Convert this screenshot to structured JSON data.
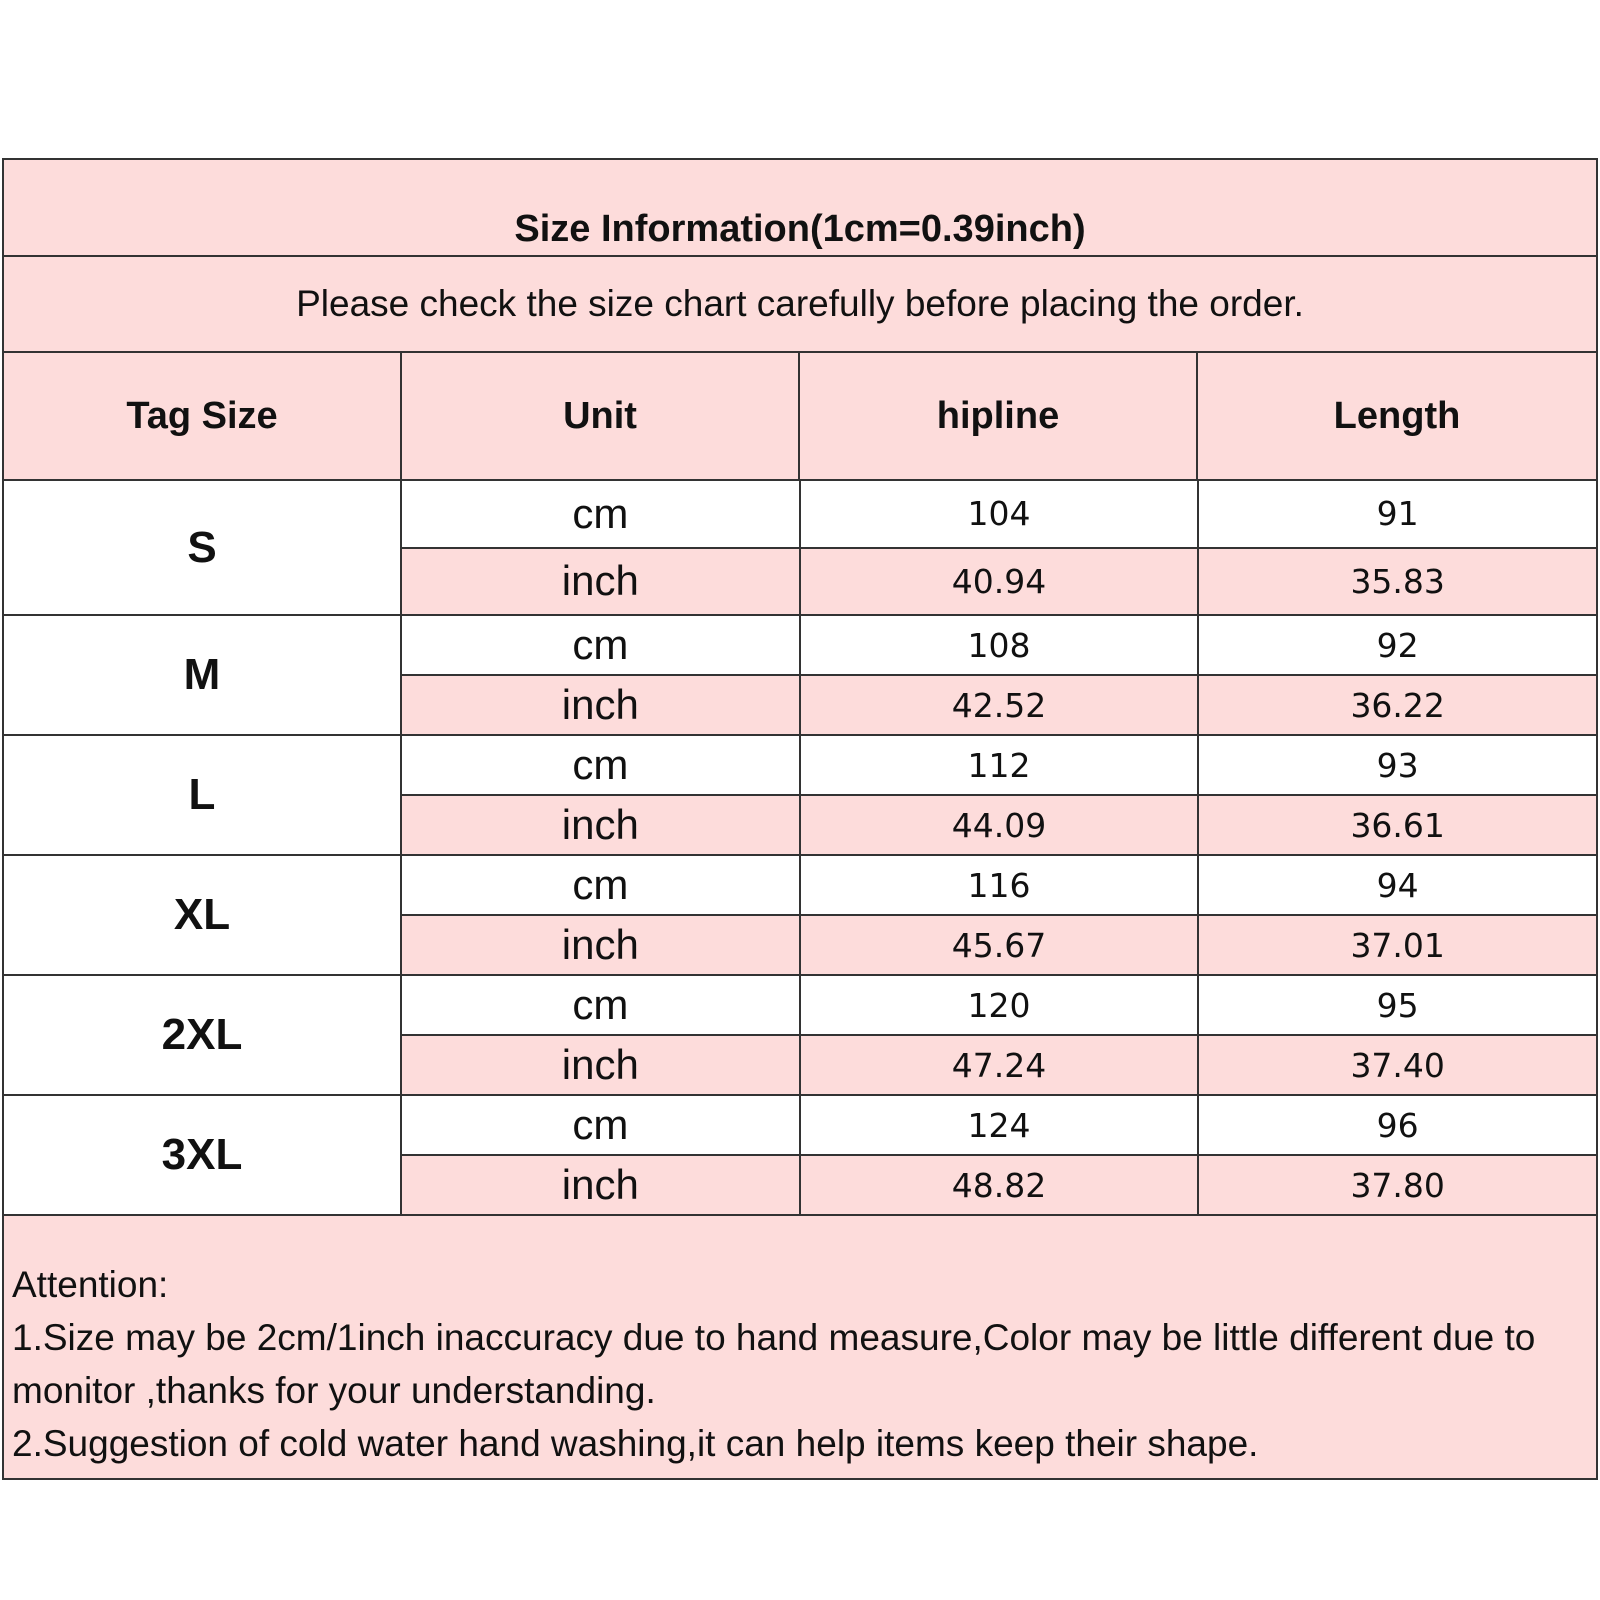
{
  "title": "Size Information(1cm=0.39inch)",
  "subtitle": "Please check the size chart carefully before placing the order.",
  "headers": [
    "Tag Size",
    "Unit",
    "hipline",
    "Length"
  ],
  "rows": [
    {
      "size": "S",
      "cm": {
        "unit": "cm",
        "hipline": "104",
        "length": "91"
      },
      "inch": {
        "unit": "inch",
        "hipline": "40.94",
        "length": "35.83"
      }
    },
    {
      "size": "M",
      "cm": {
        "unit": "cm",
        "hipline": "108",
        "length": "92"
      },
      "inch": {
        "unit": "inch",
        "hipline": "42.52",
        "length": "36.22"
      }
    },
    {
      "size": "L",
      "cm": {
        "unit": "cm",
        "hipline": "112",
        "length": "93"
      },
      "inch": {
        "unit": "inch",
        "hipline": "44.09",
        "length": "36.61"
      }
    },
    {
      "size": "XL",
      "cm": {
        "unit": "cm",
        "hipline": "116",
        "length": "94"
      },
      "inch": {
        "unit": "inch",
        "hipline": "45.67",
        "length": "37.01"
      }
    },
    {
      "size": "2XL",
      "cm": {
        "unit": "cm",
        "hipline": "120",
        "length": "95"
      },
      "inch": {
        "unit": "inch",
        "hipline": "47.24",
        "length": "37.40"
      }
    },
    {
      "size": "3XL",
      "cm": {
        "unit": "cm",
        "hipline": "124",
        "length": "96"
      },
      "inch": {
        "unit": "inch",
        "hipline": "48.82",
        "length": "37.80"
      }
    }
  ],
  "notes": {
    "heading": "Attention:",
    "line1": "1.Size may be 2cm/1inch inaccuracy due to hand measure,Color may be little different due to monitor ,thanks for your understanding.",
    "line2": "2.Suggestion of cold water hand washing,it can help items keep their shape."
  },
  "colors": {
    "pink": "#fddcdb",
    "border": "#333333"
  }
}
